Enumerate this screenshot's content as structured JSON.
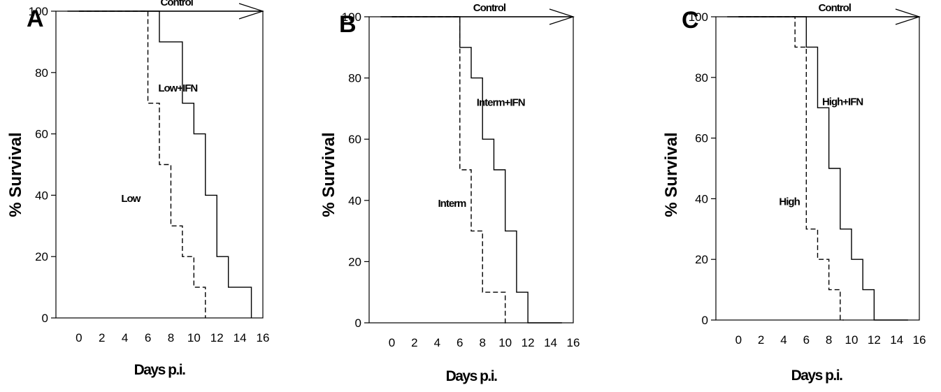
{
  "chart_data": [
    {
      "type": "line",
      "panel_label": "A",
      "xlabel": "Days p.i.",
      "ylabel": "% Survival",
      "xlim": [
        -2,
        16
      ],
      "ylim": [
        0,
        100
      ],
      "xticks": [
        0,
        2,
        4,
        6,
        8,
        10,
        12,
        14,
        16
      ],
      "yticks": [
        0,
        20,
        40,
        60,
        80,
        100
      ],
      "grid": false,
      "series": [
        {
          "name": "Control",
          "style": "solid-arrow",
          "x": [
            -1,
            16
          ],
          "y": [
            100,
            100
          ]
        },
        {
          "name": "Low+IFN",
          "style": "solid-step",
          "x": [
            0,
            7,
            9,
            10,
            11,
            12,
            13,
            15,
            15
          ],
          "y": [
            100,
            90,
            70,
            60,
            40,
            20,
            10,
            10,
            0
          ]
        },
        {
          "name": "Low",
          "style": "dashed-step",
          "x": [
            0,
            6,
            7,
            8,
            9,
            10,
            11,
            11
          ],
          "y": [
            100,
            70,
            50,
            30,
            20,
            10,
            0,
            0
          ]
        }
      ],
      "annotations": [
        {
          "text": "Control",
          "x": 8.5,
          "y": 103
        },
        {
          "text": "Low+IFN",
          "x": 8.6,
          "y": 75
        },
        {
          "text": "Low",
          "x": 4.5,
          "y": 39
        }
      ]
    },
    {
      "type": "line",
      "panel_label": "B",
      "xlabel": "Days p.i.",
      "ylabel": "% Survival",
      "xlim": [
        -2,
        16
      ],
      "ylim": [
        0,
        100
      ],
      "xticks": [
        0,
        2,
        4,
        6,
        8,
        10,
        12,
        14,
        16
      ],
      "yticks": [
        0,
        20,
        40,
        60,
        80,
        100
      ],
      "grid": false,
      "series": [
        {
          "name": "Control",
          "style": "solid-arrow",
          "x": [
            -1,
            16
          ],
          "y": [
            100,
            100
          ]
        },
        {
          "name": "Interm+IFN",
          "style": "solid-step",
          "x": [
            0,
            6,
            7,
            8,
            9,
            10,
            11,
            12,
            15
          ],
          "y": [
            100,
            90,
            80,
            60,
            50,
            30,
            10,
            0,
            0
          ]
        },
        {
          "name": "Interm",
          "style": "dashed-step",
          "x": [
            0,
            6,
            7,
            8,
            10,
            10.2
          ],
          "y": [
            100,
            50,
            30,
            10,
            0,
            0
          ]
        }
      ],
      "annotations": [
        {
          "text": "Control",
          "x": 8.6,
          "y": 103
        },
        {
          "text": "Interm+IFN",
          "x": 9.6,
          "y": 72
        },
        {
          "text": "Interm",
          "x": 5.3,
          "y": 39
        }
      ]
    },
    {
      "type": "line",
      "panel_label": "C",
      "xlabel": "Days p.i.",
      "ylabel": "% Survival",
      "xlim": [
        -2,
        16
      ],
      "ylim": [
        0,
        100
      ],
      "xticks": [
        0,
        2,
        4,
        6,
        8,
        10,
        12,
        14,
        16
      ],
      "yticks": [
        0,
        20,
        40,
        60,
        80,
        100
      ],
      "grid": false,
      "series": [
        {
          "name": "Control",
          "style": "solid-arrow",
          "x": [
            -1,
            16
          ],
          "y": [
            100,
            100
          ]
        },
        {
          "name": "High+IFN",
          "style": "solid-step",
          "x": [
            0,
            6,
            7,
            8,
            9,
            10,
            11,
            12,
            15
          ],
          "y": [
            100,
            90,
            70,
            50,
            30,
            20,
            10,
            0,
            0
          ]
        },
        {
          "name": "High",
          "style": "dashed-step",
          "x": [
            0,
            5,
            6,
            7,
            8,
            9,
            9.3
          ],
          "y": [
            100,
            90,
            30,
            20,
            10,
            0,
            0
          ]
        }
      ],
      "annotations": [
        {
          "text": "Control",
          "x": 8.5,
          "y": 103
        },
        {
          "text": "High+IFN",
          "x": 9.2,
          "y": 72
        },
        {
          "text": "High",
          "x": 4.5,
          "y": 39
        }
      ]
    }
  ]
}
